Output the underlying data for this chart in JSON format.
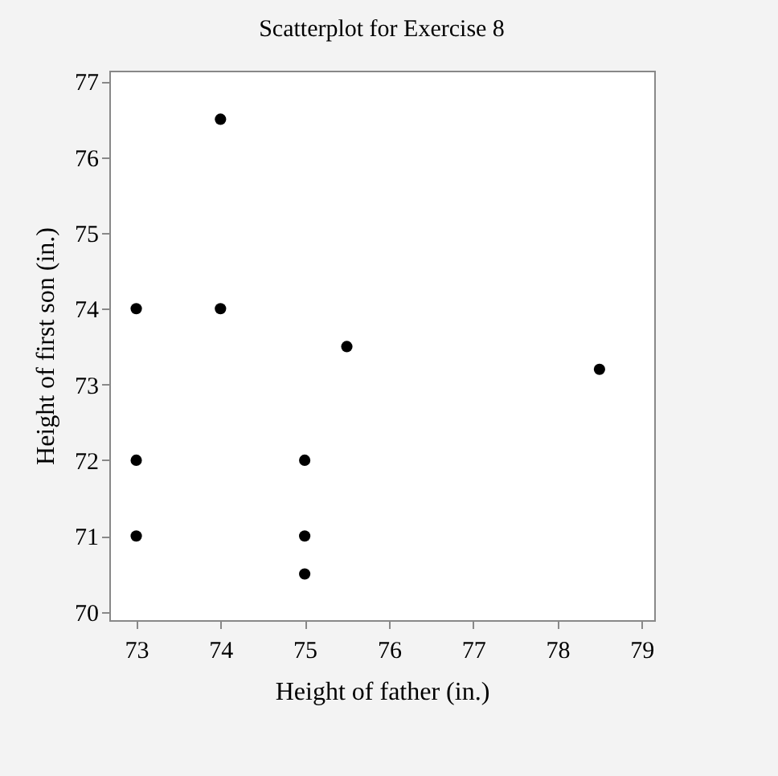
{
  "chart_data": {
    "type": "scatter",
    "title": "Scatterplot for Exercise 8",
    "xlabel": "Height of father (in.)",
    "ylabel": "Height of first son (in.)",
    "x": [
      73,
      73,
      73,
      74,
      74,
      75,
      75,
      75,
      75.5,
      78.5
    ],
    "series": [
      {
        "color": "#000000",
        "values": [
          74,
          72,
          71,
          76.5,
          74,
          72,
          71,
          70.5,
          73.5,
          73.2
        ]
      }
    ],
    "xlim": [
      72.68,
      79.15
    ],
    "xticks": [
      73,
      74,
      75,
      76,
      77,
      78,
      79
    ],
    "ylim": [
      69.89,
      77.14
    ],
    "yticks": [
      70,
      71,
      72,
      73,
      74,
      75,
      76,
      77
    ],
    "marker": "circle",
    "grid": false,
    "legend": false
  }
}
